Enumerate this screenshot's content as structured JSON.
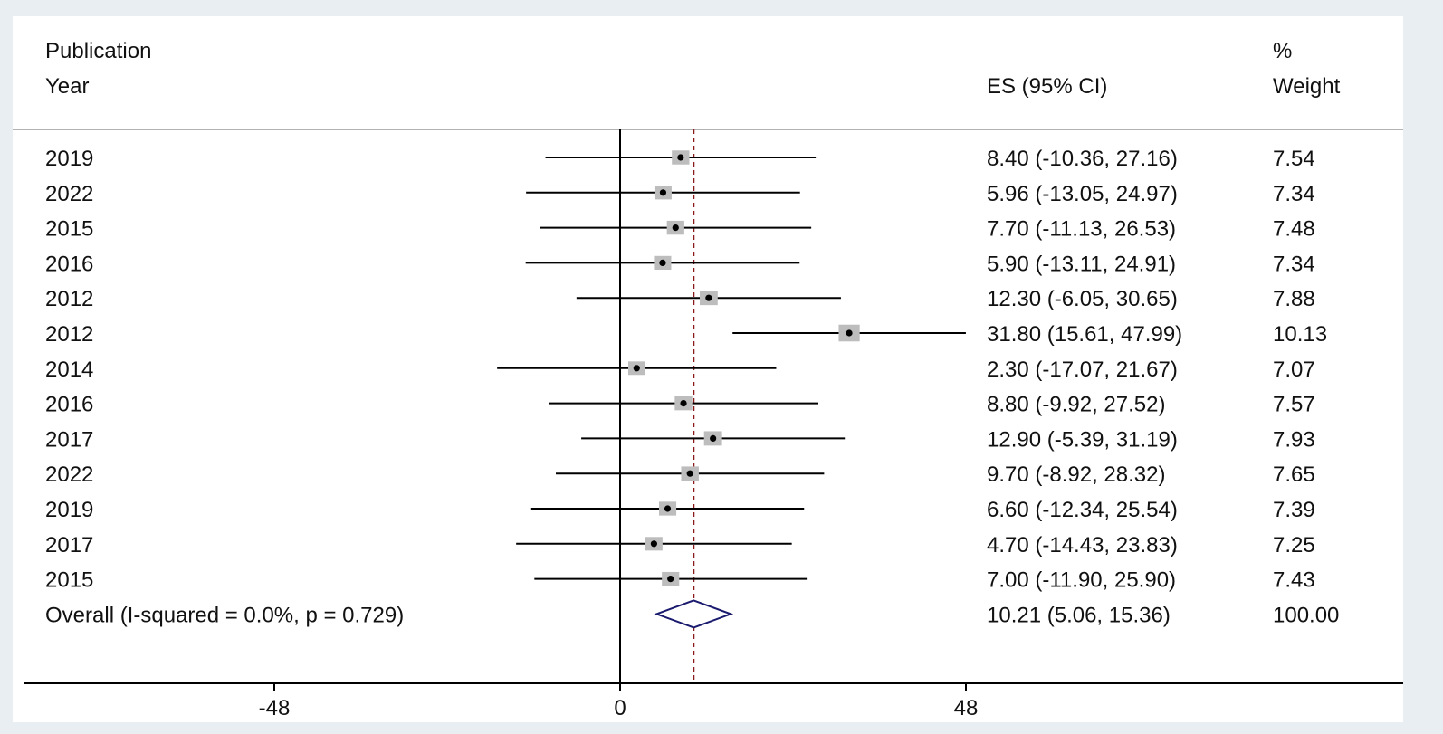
{
  "header": {
    "study_col_line1": "Publication",
    "study_col_line2": "Year",
    "es_col": "ES (95% CI)",
    "weight_col_line1": "%",
    "weight_col_line2": "Weight"
  },
  "chart_data": {
    "type": "forest",
    "x_ticks": [
      -48,
      0,
      48
    ],
    "xlim": [
      -48,
      48
    ],
    "null_line": 0,
    "pooled_estimate_line": 10.21,
    "studies": [
      {
        "label": "2019",
        "es": 8.4,
        "lo": -10.36,
        "hi": 27.16,
        "weight": 7.54,
        "es_text": "8.40 (-10.36, 27.16)",
        "weight_text": "7.54"
      },
      {
        "label": "2022",
        "es": 5.96,
        "lo": -13.05,
        "hi": 24.97,
        "weight": 7.34,
        "es_text": "5.96 (-13.05, 24.97)",
        "weight_text": "7.34"
      },
      {
        "label": "2015",
        "es": 7.7,
        "lo": -11.13,
        "hi": 26.53,
        "weight": 7.48,
        "es_text": "7.70 (-11.13, 26.53)",
        "weight_text": "7.48"
      },
      {
        "label": "2016",
        "es": 5.9,
        "lo": -13.11,
        "hi": 24.91,
        "weight": 7.34,
        "es_text": "5.90 (-13.11, 24.91)",
        "weight_text": "7.34"
      },
      {
        "label": "2012",
        "es": 12.3,
        "lo": -6.05,
        "hi": 30.65,
        "weight": 7.88,
        "es_text": "12.30 (-6.05, 30.65)",
        "weight_text": "7.88"
      },
      {
        "label": "2012",
        "es": 31.8,
        "lo": 15.61,
        "hi": 47.99,
        "weight": 10.13,
        "es_text": "31.80 (15.61, 47.99)",
        "weight_text": "10.13"
      },
      {
        "label": "2014",
        "es": 2.3,
        "lo": -17.07,
        "hi": 21.67,
        "weight": 7.07,
        "es_text": "2.30 (-17.07, 21.67)",
        "weight_text": "7.07"
      },
      {
        "label": "2016",
        "es": 8.8,
        "lo": -9.92,
        "hi": 27.52,
        "weight": 7.57,
        "es_text": "8.80 (-9.92, 27.52)",
        "weight_text": "7.57"
      },
      {
        "label": "2017",
        "es": 12.9,
        "lo": -5.39,
        "hi": 31.19,
        "weight": 7.93,
        "es_text": "12.90 (-5.39, 31.19)",
        "weight_text": "7.93"
      },
      {
        "label": "2022",
        "es": 9.7,
        "lo": -8.92,
        "hi": 28.32,
        "weight": 7.65,
        "es_text": "9.70 (-8.92, 28.32)",
        "weight_text": "7.65"
      },
      {
        "label": "2019",
        "es": 6.6,
        "lo": -12.34,
        "hi": 25.54,
        "weight": 7.39,
        "es_text": "6.60 (-12.34, 25.54)",
        "weight_text": "7.39"
      },
      {
        "label": "2017",
        "es": 4.7,
        "lo": -14.43,
        "hi": 23.83,
        "weight": 7.25,
        "es_text": "4.70 (-14.43, 23.83)",
        "weight_text": "7.25"
      },
      {
        "label": "2015",
        "es": 7.0,
        "lo": -11.9,
        "hi": 25.9,
        "weight": 7.43,
        "es_text": "7.00 (-11.90, 25.90)",
        "weight_text": "7.43"
      }
    ],
    "overall": {
      "label": "Overall  (I-squared = 0.0%, p = 0.729)",
      "es": 10.21,
      "lo": 5.06,
      "hi": 15.36,
      "weight": 100.0,
      "es_text": "10.21 (5.06, 15.36)",
      "weight_text": "100.00"
    },
    "colors": {
      "ci_line": "#000000",
      "weight_box": "#bdbdbd",
      "point": "#000000",
      "null_line": "#000000",
      "estimate_line": "#8b1a1a",
      "diamond": "#1a1a6e",
      "separator": "#999999"
    }
  }
}
